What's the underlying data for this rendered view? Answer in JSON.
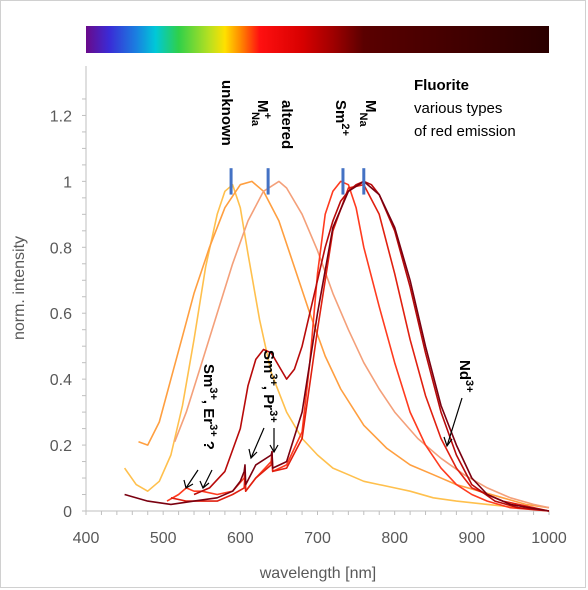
{
  "chart_data": {
    "type": "line",
    "title": "Fluorite",
    "subtitle_lines": [
      "various types",
      "of red emission"
    ],
    "xlabel": "wavelength [nm]",
    "ylabel": "norm. intensity",
    "xlim": [
      400,
      1000
    ],
    "ylim": [
      0,
      1.35
    ],
    "x_ticks": [
      400,
      500,
      600,
      700,
      800,
      900,
      1000
    ],
    "y_ticks": [
      0,
      0.2,
      0.4,
      0.6,
      0.8,
      1,
      1.2
    ],
    "x_tick_labels": [
      "400",
      "500",
      "600",
      "700",
      "800",
      "900",
      "1000"
    ],
    "y_tick_labels": [
      "0",
      "0.2",
      "0.4",
      "0.6",
      "0.8",
      "1",
      "1.2"
    ],
    "grid": false,
    "spectrum_bar": {
      "range_nm": [
        400,
        1000
      ],
      "stops": [
        {
          "nm": 400,
          "color": "#6a0a8a"
        },
        {
          "nm": 430,
          "color": "#3a2bd6"
        },
        {
          "nm": 465,
          "color": "#1a7fe0"
        },
        {
          "nm": 490,
          "color": "#00c8d8"
        },
        {
          "nm": 520,
          "color": "#2fd04a"
        },
        {
          "nm": 560,
          "color": "#b8e020"
        },
        {
          "nm": 580,
          "color": "#ffe000"
        },
        {
          "nm": 600,
          "color": "#ff8a00"
        },
        {
          "nm": 625,
          "color": "#ff1010"
        },
        {
          "nm": 680,
          "color": "#d80000"
        },
        {
          "nm": 720,
          "color": "#a00000"
        },
        {
          "nm": 760,
          "color": "#5a0000"
        },
        {
          "nm": 1000,
          "color": "#2a0000"
        }
      ]
    },
    "series": [
      {
        "color": "#ffc04d",
        "x": [
          450,
          465,
          480,
          495,
          510,
          525,
          540,
          555,
          570,
          580,
          590,
          600,
          610,
          625,
          640,
          660,
          680,
          700,
          720,
          740,
          760,
          780,
          800,
          820,
          850,
          880,
          920,
          960,
          1000
        ],
        "y": [
          0.13,
          0.08,
          0.06,
          0.09,
          0.17,
          0.32,
          0.52,
          0.74,
          0.9,
          0.97,
          0.99,
          0.92,
          0.78,
          0.58,
          0.42,
          0.3,
          0.22,
          0.17,
          0.13,
          0.11,
          0.09,
          0.08,
          0.07,
          0.06,
          0.04,
          0.03,
          0.02,
          0.01,
          0.0
        ]
      },
      {
        "color": "#ff9f40",
        "x": [
          468,
          480,
          495,
          510,
          525,
          540,
          560,
          580,
          600,
          615,
          630,
          650,
          670,
          690,
          710,
          730,
          760,
          790,
          820,
          850,
          880,
          910,
          940,
          970,
          1000
        ],
        "y": [
          0.21,
          0.2,
          0.27,
          0.4,
          0.53,
          0.66,
          0.8,
          0.92,
          0.99,
          1.0,
          0.97,
          0.88,
          0.74,
          0.6,
          0.47,
          0.37,
          0.26,
          0.19,
          0.14,
          0.11,
          0.08,
          0.06,
          0.04,
          0.02,
          0.01
        ]
      },
      {
        "color": "#f4a07a",
        "x": [
          515,
          530,
          550,
          570,
          590,
          610,
          630,
          650,
          660,
          680,
          700,
          720,
          740,
          760,
          780,
          800,
          830,
          860,
          890,
          920,
          950,
          980,
          1000
        ],
        "y": [
          0.21,
          0.3,
          0.45,
          0.6,
          0.75,
          0.88,
          0.97,
          1.0,
          0.98,
          0.9,
          0.79,
          0.66,
          0.55,
          0.45,
          0.37,
          0.3,
          0.22,
          0.16,
          0.11,
          0.07,
          0.04,
          0.02,
          0.01
        ]
      },
      {
        "color": "#ff3b1f",
        "x": [
          505,
          520,
          530,
          540,
          550,
          570,
          590,
          605,
          606,
          607,
          620,
          640,
          641,
          642,
          660,
          680,
          690,
          700,
          710,
          720,
          730,
          740,
          750,
          760,
          780,
          800,
          820,
          840,
          860,
          880,
          900,
          920,
          950,
          1000
        ],
        "y": [
          0.03,
          0.05,
          0.07,
          0.06,
          0.06,
          0.05,
          0.06,
          0.1,
          0.12,
          0.06,
          0.1,
          0.15,
          0.18,
          0.12,
          0.14,
          0.24,
          0.45,
          0.72,
          0.9,
          0.97,
          1.0,
          0.99,
          0.92,
          0.8,
          0.62,
          0.45,
          0.3,
          0.2,
          0.13,
          0.08,
          0.05,
          0.03,
          0.01,
          0.0
        ]
      },
      {
        "color": "#e02010",
        "x": [
          510,
          530,
          550,
          570,
          590,
          605,
          606,
          607,
          620,
          640,
          641,
          642,
          660,
          680,
          700,
          720,
          740,
          760,
          780,
          800,
          820,
          840,
          860,
          880,
          900,
          940,
          980,
          1000
        ],
        "y": [
          0.04,
          0.03,
          0.03,
          0.03,
          0.05,
          0.07,
          0.11,
          0.06,
          0.1,
          0.14,
          0.17,
          0.12,
          0.13,
          0.22,
          0.55,
          0.85,
          0.98,
          0.99,
          0.9,
          0.72,
          0.52,
          0.35,
          0.22,
          0.13,
          0.07,
          0.03,
          0.01,
          0.0
        ]
      },
      {
        "color": "#b80a0a",
        "x": [
          540,
          560,
          580,
          600,
          610,
          620,
          630,
          640,
          650,
          660,
          670,
          680,
          690,
          700,
          710,
          720,
          730,
          740,
          750,
          760,
          770,
          780,
          800,
          820,
          840,
          860,
          880,
          900,
          930,
          960,
          1000
        ],
        "y": [
          0.05,
          0.07,
          0.12,
          0.25,
          0.38,
          0.46,
          0.49,
          0.48,
          0.44,
          0.4,
          0.43,
          0.5,
          0.6,
          0.7,
          0.8,
          0.88,
          0.94,
          0.97,
          0.99,
          1.0,
          0.99,
          0.96,
          0.85,
          0.68,
          0.48,
          0.3,
          0.17,
          0.08,
          0.03,
          0.01,
          0.0
        ]
      },
      {
        "color": "#7a0010",
        "x": [
          450,
          480,
          510,
          540,
          570,
          590,
          600,
          605,
          606,
          607,
          620,
          640,
          641,
          642,
          660,
          680,
          700,
          720,
          740,
          760,
          780,
          800,
          820,
          840,
          860,
          880,
          900,
          920,
          950,
          1000
        ],
        "y": [
          0.05,
          0.03,
          0.02,
          0.03,
          0.04,
          0.06,
          0.09,
          0.12,
          0.14,
          0.08,
          0.14,
          0.17,
          0.18,
          0.13,
          0.15,
          0.3,
          0.6,
          0.86,
          0.97,
          1.0,
          0.96,
          0.86,
          0.7,
          0.5,
          0.32,
          0.2,
          0.1,
          0.05,
          0.02,
          0.0
        ]
      }
    ],
    "annotations": {
      "unknown": "unknown",
      "m_na_plus": "M",
      "m_na_plus_sup": "+",
      "m_na_plus_sub": "Na",
      "altered": "altered",
      "sm2": "Sm",
      "sm2_sup": "2+",
      "m_na": "M",
      "m_na_sub": "Na",
      "sm3_er3": "Sm",
      "sm3_er3_sup1": "3+",
      "sm3_er3_mid": ", Er",
      "sm3_er3_sup2": "3+",
      "sm3_er3_end": " ?",
      "sm3_pr3": "Sm",
      "sm3_pr3_sup1": "3+",
      "sm3_pr3_mid": ", Pr",
      "sm3_pr3_sup2": "3+",
      "nd3": "Nd",
      "nd3_sup": "3+"
    },
    "markers_nm": {
      "unknown": 588,
      "m_na_plus": 636,
      "sm2": 733,
      "m_na": 760
    }
  }
}
